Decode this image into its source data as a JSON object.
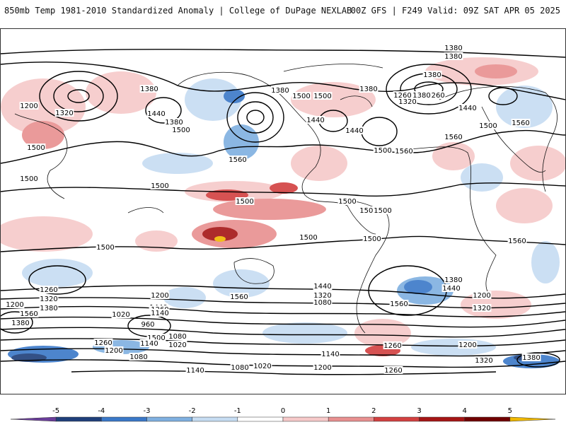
{
  "header": {
    "title": "850mb Temp 1981-2010 Standardized Anomaly | College of DuPage NEXLAB",
    "run_info": "00Z GFS | F249 Valid: 09Z SAT APR 05 2025"
  },
  "colorbar": {
    "tick_labels": [
      "-5",
      "-4",
      "-3",
      "-2",
      "-1",
      "0",
      "1",
      "2",
      "3",
      "4",
      "5"
    ],
    "colors": [
      "#6a3d9a",
      "#1f3f7a",
      "#3a78c8",
      "#7fb0e0",
      "#c6dcf2",
      "#ffffff",
      "#f6c9c9",
      "#e89090",
      "#d24040",
      "#a51515",
      "#700000",
      "#f0b800"
    ]
  },
  "contours": {
    "labels": [
      "1380",
      "1380",
      "1380",
      "1260",
      "1200",
      "1320",
      "1380",
      "1440",
      "1500",
      "1380",
      "1440",
      "1380",
      "1500",
      "1560",
      "1500",
      "1500",
      "1380",
      "1500",
      "1440",
      "1500",
      "1560",
      "1380",
      "1260",
      "1320",
      "1440",
      "1560",
      "1500",
      "1500",
      "1500",
      "1500",
      "1500",
      "1500",
      "1560",
      "1500",
      "1500",
      "1440",
      "1320",
      "1080",
      "1560",
      "1560",
      "1440",
      "1380",
      "1320",
      "1260",
      "1200",
      "1560",
      "1500",
      "1380",
      "1260",
      "1200",
      "1140",
      "1020",
      "960",
      "1080",
      "1020",
      "1140",
      "1200",
      "1080",
      "1260",
      "1140",
      "1080",
      "1020",
      "1200",
      "1260",
      "1140",
      "1200",
      "1380",
      "1320",
      "1440",
      "1560",
      "1500",
      "1260",
      "1320",
      "1200",
      "1380"
    ]
  }
}
